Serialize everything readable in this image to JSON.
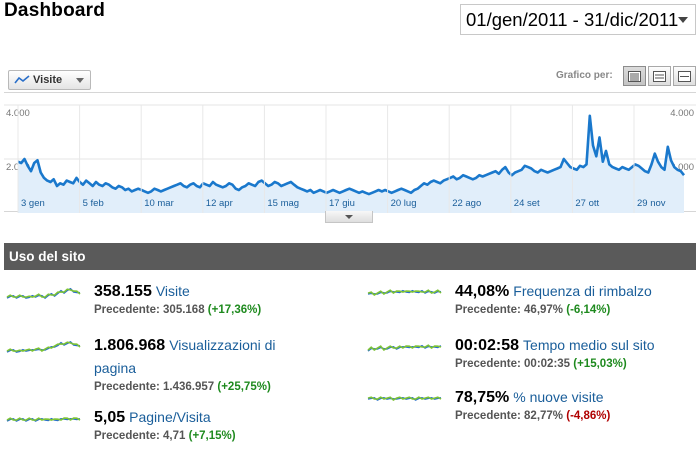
{
  "header": {
    "title": "Dashboard",
    "date_range": "01/gen/2011 - 31/dic/2011"
  },
  "graph_controls": {
    "metric_label": "Visite",
    "graph_by_label": "Grafico per:",
    "views": [
      "day-view-icon",
      "week-view-icon",
      "month-view-icon"
    ]
  },
  "chart_data": {
    "type": "area",
    "series": [
      {
        "name": "Visite",
        "color": "#1a78cc"
      }
    ],
    "y_axis_labels_left": [
      "4.000",
      "2.000"
    ],
    "y_axis_labels_right": [
      "4.000",
      "2.000"
    ],
    "ylim": [
      0,
      4000
    ],
    "grid": true,
    "x_ticks": [
      "3 gen",
      "5 feb",
      "10 mar",
      "12 apr",
      "15 mag",
      "17 giu",
      "20 lug",
      "22 ago",
      "24 set",
      "27 ott",
      "29 nov"
    ],
    "values": [
      1900,
      1850,
      2000,
      1750,
      1550,
      1850,
      1950,
      1500,
      1300,
      1200,
      1150,
      1250,
      1000,
      1100,
      1050,
      1200,
      1150,
      1100,
      1300,
      1150,
      1050,
      1200,
      1100,
      1000,
      1150,
      1050,
      1000,
      1100,
      1050,
      950,
      900,
      1000,
      950,
      850,
      900,
      800,
      850,
      900,
      850,
      800,
      750,
      800,
      900,
      850,
      800,
      850,
      900,
      950,
      1000,
      1050,
      1100,
      1000,
      950,
      1050,
      1100,
      1000,
      950,
      1100,
      1050,
      1000,
      1150,
      1050,
      1000,
      950,
      1000,
      1100,
      1050,
      900,
      850,
      950,
      1000,
      1100,
      1050,
      1000,
      1150,
      1200,
      1100,
      1000,
      1050,
      1150,
      1100,
      1000,
      1050,
      1100,
      1150,
      1050,
      950,
      900,
      850,
      800,
      850,
      750,
      800,
      850,
      800,
      750,
      800,
      850,
      800,
      750,
      800,
      850,
      900,
      850,
      800,
      750,
      800,
      750,
      700,
      750,
      800,
      850,
      800,
      850,
      800,
      750,
      800,
      850,
      900,
      850,
      800,
      750,
      850,
      900,
      1000,
      1100,
      1050,
      1150,
      1200,
      1150,
      1100,
      1200,
      1250,
      1300,
      1350,
      1250,
      1300,
      1400,
      1350,
      1300,
      1250,
      1300,
      1400,
      1350,
      1400,
      1450,
      1500,
      1550,
      1450,
      1600,
      1700,
      1500,
      1400,
      1500,
      1550,
      1600,
      1750,
      1700,
      1650,
      1550,
      1500,
      1600,
      1550,
      1500,
      1550,
      1600,
      1650,
      1700,
      2000,
      1850,
      1700,
      1650,
      1600,
      1750,
      1700,
      1800,
      3600,
      2500,
      2100,
      2800,
      1900,
      2300,
      1800,
      1700,
      1650,
      1600,
      1700,
      1650,
      1600,
      1700,
      1800,
      1750,
      1650,
      1550,
      1500,
      1800,
      2200,
      1900,
      1700,
      1600,
      2450,
      1950,
      1700,
      1600,
      1550,
      1400
    ]
  },
  "site_usage": {
    "title": "Uso del sito",
    "stats": [
      {
        "value": "358.155",
        "label": "Visite",
        "label2": "",
        "prev_label": "Precedente: 305.168",
        "delta": "(+17,36%)",
        "trend": "up"
      },
      {
        "value": "1.806.968",
        "label": "Visualizzazioni di",
        "label2": "pagina",
        "prev_label": "Precedente: 1.436.957",
        "delta": "(+25,75%)",
        "trend": "up"
      },
      {
        "value": "5,05",
        "label": "Pagine/Visita",
        "label2": "",
        "prev_label": "Precedente: 4,71",
        "delta": "(+7,15%)",
        "trend": "up"
      },
      {
        "value": "44,08%",
        "label": "Frequenza di rimbalzo",
        "label2": "",
        "prev_label": "Precedente: 46,97%",
        "delta": "(-6,14%)",
        "trend": "up"
      },
      {
        "value": "00:02:58",
        "label": "Tempo medio sul sito",
        "label2": "",
        "prev_label": "Precedente: 00:02:35",
        "delta": "(+15,03%)",
        "trend": "up"
      },
      {
        "value": "78,75%",
        "label": "% nuove visite",
        "label2": "",
        "prev_label": "Precedente: 82,77%",
        "delta": "(-4,86%)",
        "trend": "down"
      }
    ]
  },
  "colors": {
    "series_line": "#1a78cc",
    "series_fill": "#e1eefa",
    "spark_blue": "#2a6fc9",
    "spark_green": "#7cc235",
    "header_bg": "#5a5a5a"
  }
}
